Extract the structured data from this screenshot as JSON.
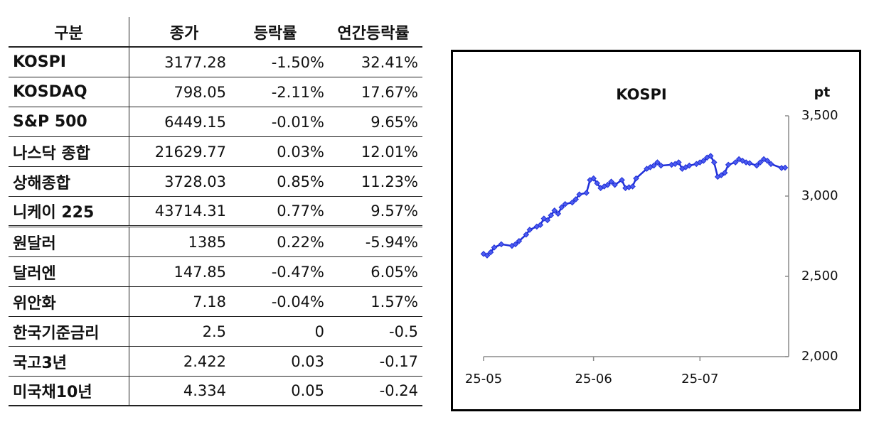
{
  "table": {
    "headers": [
      "구분",
      "종가",
      "등락률",
      "연간등락률"
    ],
    "rows": [
      {
        "name": "KOSPI",
        "close": "3177.28",
        "change": "-1.50%",
        "ytd": "32.41%"
      },
      {
        "name": "KOSDAQ",
        "close": "798.05",
        "change": "-2.11%",
        "ytd": "17.67%"
      },
      {
        "name": "S&P 500",
        "close": "6449.15",
        "change": "-0.01%",
        "ytd": "9.65%"
      },
      {
        "name": "나스닥 종합",
        "close": "21629.77",
        "change": "0.03%",
        "ytd": "12.01%"
      },
      {
        "name": "상해종합",
        "close": "3728.03",
        "change": "0.85%",
        "ytd": "11.23%"
      },
      {
        "name": "니케이 225",
        "close": "43714.31",
        "change": "0.77%",
        "ytd": "9.57%"
      },
      {
        "name": "원달러",
        "close": "1385",
        "change": "0.22%",
        "ytd": "-5.94%"
      },
      {
        "name": "달러엔",
        "close": "147.85",
        "change": "-0.47%",
        "ytd": "6.05%"
      },
      {
        "name": "위안화",
        "close": "7.18",
        "change": "-0.04%",
        "ytd": "1.57%"
      },
      {
        "name": "한국기준금리",
        "close": "2.5",
        "change": "0",
        "ytd": "-0.5"
      },
      {
        "name": "국고3년",
        "close": "2.422",
        "change": "0.03",
        "ytd": "-0.17"
      },
      {
        "name": "미국채10년",
        "close": "4.334",
        "change": "0.05",
        "ytd": "-0.24"
      }
    ]
  },
  "chart_data": {
    "type": "line",
    "title": "KOSPI",
    "ylabel": "pt",
    "ylim": [
      2000,
      3500
    ],
    "yticks": [
      2000,
      2500,
      3000,
      3500
    ],
    "ytick_labels": [
      "2,000",
      "2,500",
      "3,000",
      "3,500"
    ],
    "xticks": [
      "2025-05-01",
      "2025-06-01",
      "2025-07-01"
    ],
    "xtick_labels": [
      "25-05",
      "25-06",
      "25-07"
    ],
    "xlim": [
      "2025-05-01",
      "2025-07-26"
    ],
    "y_axis_position": "right",
    "grid": false,
    "series_color": "#1f2fd8",
    "marker": "diamond",
    "series": [
      {
        "x": [
          "2025-05-01",
          "2025-05-02",
          "2025-05-03",
          "2025-05-04",
          "2025-05-06",
          "2025-05-09",
          "2025-05-10",
          "2025-05-11",
          "2025-05-13",
          "2025-05-14",
          "2025-05-16",
          "2025-05-17",
          "2025-05-18",
          "2025-05-19",
          "2025-05-20",
          "2025-05-21",
          "2025-05-22",
          "2025-05-23",
          "2025-05-24",
          "2025-05-26",
          "2025-05-27",
          "2025-05-28",
          "2025-05-30",
          "2025-05-31",
          "2025-06-01",
          "2025-06-02",
          "2025-06-03",
          "2025-06-04",
          "2025-06-05",
          "2025-06-06",
          "2025-06-07",
          "2025-06-09",
          "2025-06-10",
          "2025-06-11",
          "2025-06-12",
          "2025-06-13",
          "2025-06-16",
          "2025-06-17",
          "2025-06-18",
          "2025-06-19",
          "2025-06-20",
          "2025-06-23",
          "2025-06-24",
          "2025-06-25",
          "2025-06-26",
          "2025-06-27",
          "2025-06-28",
          "2025-06-30",
          "2025-07-01",
          "2025-07-02",
          "2025-07-03",
          "2025-07-04",
          "2025-07-05",
          "2025-07-06",
          "2025-07-07",
          "2025-07-08",
          "2025-07-09",
          "2025-07-11",
          "2025-07-12",
          "2025-07-13",
          "2025-07-14",
          "2025-07-15",
          "2025-07-17",
          "2025-07-18",
          "2025-07-19",
          "2025-07-20",
          "2025-07-21",
          "2025-07-24",
          "2025-07-25"
        ],
        "values": [
          2640,
          2630,
          2650,
          2680,
          2700,
          2690,
          2700,
          2720,
          2760,
          2790,
          2810,
          2820,
          2860,
          2850,
          2880,
          2910,
          2890,
          2930,
          2950,
          2960,
          2980,
          3010,
          3020,
          3100,
          3110,
          3080,
          3050,
          3060,
          3070,
          3090,
          3070,
          3100,
          3050,
          3055,
          3060,
          3110,
          3170,
          3180,
          3190,
          3210,
          3190,
          3195,
          3200,
          3210,
          3170,
          3180,
          3190,
          3200,
          3210,
          3220,
          3240,
          3250,
          3210,
          3120,
          3130,
          3145,
          3195,
          3210,
          3230,
          3220,
          3210,
          3205,
          3190,
          3210,
          3230,
          3220,
          3200,
          3175,
          3177
        ]
      }
    ]
  }
}
